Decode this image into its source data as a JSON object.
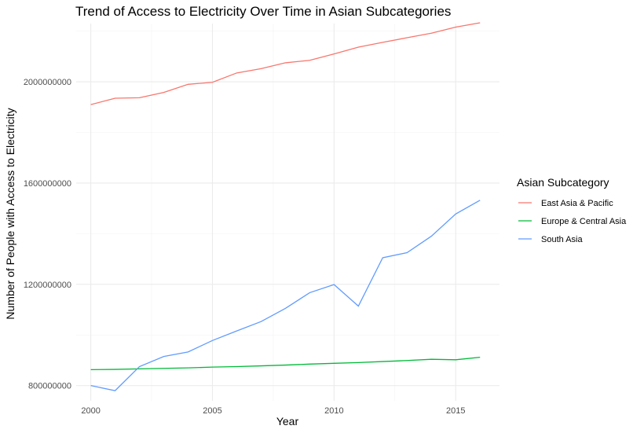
{
  "chart_data": {
    "type": "line",
    "title": "Trend of Access to Electricity Over Time in Asian Subcategories",
    "xlabel": "Year",
    "ylabel": "Number of People with Access to Electricity",
    "x": [
      2000,
      2001,
      2002,
      2003,
      2004,
      2005,
      2006,
      2007,
      2008,
      2009,
      2010,
      2011,
      2012,
      2013,
      2014,
      2015,
      2016
    ],
    "xlim": [
      1999.4,
      2016.8
    ],
    "ylim": [
      740000000,
      2230000000
    ],
    "x_ticks": [
      2000,
      2005,
      2010,
      2015
    ],
    "x_tick_labels": [
      "2000",
      "2005",
      "2010",
      "2015"
    ],
    "y_ticks": [
      800000000,
      1200000000,
      1600000000,
      2000000000
    ],
    "y_tick_labels": [
      "800000000",
      "1200000000",
      "1600000000",
      "2000000000"
    ],
    "grid": true,
    "legend": {
      "title": "Asian Subcategory",
      "position": "right"
    },
    "series": [
      {
        "name": "East Asia & Pacific",
        "color": "#F8766D",
        "values": [
          1910000000,
          1935000000,
          1937000000,
          1958000000,
          1990000000,
          1998000000,
          2035000000,
          2052000000,
          2075000000,
          2085000000,
          2110000000,
          2137000000,
          2156000000,
          2174000000,
          2192000000,
          2216000000,
          2233000000
        ]
      },
      {
        "name": "Europe & Central Asia",
        "color": "#00BA38",
        "values": [
          863000000,
          864000000,
          866000000,
          868000000,
          870000000,
          873000000,
          875000000,
          878000000,
          881000000,
          885000000,
          888000000,
          891000000,
          895000000,
          899000000,
          904000000,
          902000000,
          912000000
        ]
      },
      {
        "name": "South Asia",
        "color": "#619CFF",
        "values": [
          800000000,
          780000000,
          875000000,
          915000000,
          933000000,
          978000000,
          1016000000,
          1053000000,
          1105000000,
          1167000000,
          1199000000,
          1114000000,
          1305000000,
          1325000000,
          1390000000,
          1478000000,
          1532000000
        ]
      }
    ]
  }
}
